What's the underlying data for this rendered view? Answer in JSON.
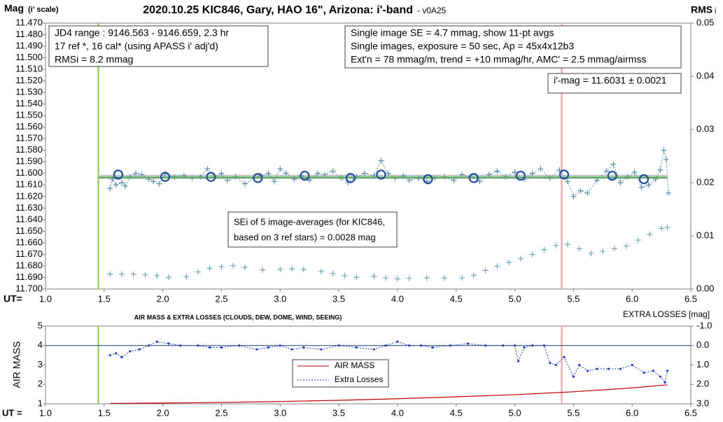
{
  "chart_data": [
    {
      "type": "scatter",
      "title": "2020.10.25 KIC846, Gary, HAO 16\", Arizona: i'-band",
      "subtitle": "- v0A25",
      "ylabel": "Mag",
      "ylabel_note": "(i' scale)",
      "y2label": "RMS",
      "y2label_note": "i",
      "xlabel": "UT=",
      "xlim": [
        1.0,
        6.5
      ],
      "xticks": [
        {
          "value": 1,
          "label": "1.0"
        },
        1.5,
        {
          "value": 2,
          "label": "2.0"
        },
        2.5,
        {
          "value": 3,
          "label": "3.0"
        },
        3.5,
        {
          "value": 4,
          "label": "4.0"
        },
        4.5,
        {
          "value": 5,
          "label": "5.0"
        },
        5.5,
        {
          "value": 6,
          "label": "6.0"
        },
        6.5
      ],
      "ylim": [
        11.7,
        11.47
      ],
      "yticks": [
        {
          "value": 11.47,
          "label": "11.470"
        },
        {
          "value": 11.48,
          "label": "11.480"
        },
        {
          "value": 11.49,
          "label": "11.490"
        },
        {
          "value": 11.5,
          "label": "11.500"
        },
        {
          "value": 11.51,
          "label": "11.510"
        },
        {
          "value": 11.52,
          "label": "11.520"
        },
        {
          "value": 11.53,
          "label": "11.530"
        },
        {
          "value": 11.54,
          "label": "11.540"
        },
        {
          "value": 11.55,
          "label": "11.550"
        },
        {
          "value": 11.56,
          "label": "11.560"
        },
        {
          "value": 11.57,
          "label": "11.570"
        },
        {
          "value": 11.58,
          "label": "11.580"
        },
        {
          "value": 11.59,
          "label": "11.590"
        },
        {
          "value": 11.6,
          "label": "11.600"
        },
        {
          "value": 11.61,
          "label": "11.610"
        },
        {
          "value": 11.62,
          "label": "11.620"
        },
        {
          "value": 11.63,
          "label": "11.630"
        },
        {
          "value": 11.64,
          "label": "11.640"
        },
        {
          "value": 11.65,
          "label": "11.650"
        },
        {
          "value": 11.66,
          "label": "11.660"
        },
        {
          "value": 11.67,
          "label": "11.670"
        },
        {
          "value": 11.68,
          "label": "11.680"
        },
        {
          "value": 11.69,
          "label": "11.690"
        },
        {
          "value": 11.7,
          "label": "11.700"
        }
      ],
      "y2lim": [
        0,
        0.05
      ],
      "y2ticks": [
        {
          "value": 0,
          "label": "0.00"
        },
        0.01,
        0.02,
        0.03,
        0.04,
        0.05
      ],
      "vlines": [
        {
          "x": 1.45,
          "color": "#8dc63f"
        },
        {
          "x": 5.4,
          "color": "#f4a0a0"
        }
      ],
      "series": [
        {
          "color": "#c8c8c8",
          "line": "solid",
          "width": 6,
          "x": [
            1.45,
            6.3
          ],
          "values": [
            11.603,
            11.603
          ]
        },
        {
          "color": "#5b8fb0",
          "marker": "plus",
          "line": "dotted",
          "x": [
            1.55,
            1.57,
            1.6,
            1.65,
            1.68,
            1.72,
            1.77,
            1.82,
            1.88,
            1.92,
            1.97,
            2.02,
            2.1,
            2.18,
            2.25,
            2.32,
            2.38,
            2.44,
            2.5,
            2.55,
            2.62,
            2.7,
            2.78,
            2.84,
            2.9,
            2.95,
            3.0,
            3.05,
            3.12,
            3.18,
            3.25,
            3.32,
            3.38,
            3.45,
            3.52,
            3.58,
            3.65,
            3.72,
            3.8,
            3.86,
            3.92,
            3.98,
            4.05,
            4.1,
            4.18,
            4.25,
            4.32,
            4.4,
            4.48,
            4.55,
            4.62,
            4.7,
            4.78,
            4.85,
            4.92,
            5.0,
            5.08,
            5.15,
            5.22,
            5.3,
            5.38,
            5.45,
            5.5,
            5.56,
            5.62,
            5.7,
            5.78,
            5.84,
            5.9,
            5.96,
            6.02,
            6.08,
            6.14,
            6.2,
            6.24,
            6.27,
            6.29,
            6.31
          ],
          "values": [
            11.613,
            11.605,
            11.61,
            11.608,
            11.611,
            11.603,
            11.6,
            11.601,
            11.605,
            11.607,
            11.609,
            11.6,
            11.603,
            11.602,
            11.604,
            11.603,
            11.596,
            11.603,
            11.6,
            11.606,
            11.603,
            11.609,
            11.604,
            11.602,
            11.6,
            11.607,
            11.596,
            11.6,
            11.605,
            11.602,
            11.606,
            11.6,
            11.601,
            11.598,
            11.604,
            11.608,
            11.603,
            11.6,
            11.602,
            11.589,
            11.6,
            11.604,
            11.602,
            11.606,
            11.604,
            11.607,
            11.604,
            11.603,
            11.606,
            11.601,
            11.603,
            11.607,
            11.601,
            11.598,
            11.603,
            11.599,
            11.605,
            11.6,
            11.596,
            11.604,
            11.597,
            11.607,
            11.62,
            11.615,
            11.617,
            11.606,
            11.598,
            11.592,
            11.608,
            11.603,
            11.599,
            11.612,
            11.61,
            11.605,
            11.597,
            11.58,
            11.588,
            11.617
          ]
        },
        {
          "color": "#4cb050",
          "line": "solid",
          "width": 2,
          "x": [
            1.45,
            6.3
          ],
          "values": [
            11.6035,
            11.6035
          ]
        },
        {
          "color": "#1f4e9e",
          "marker": "circle",
          "x": [
            1.62,
            2.02,
            2.41,
            2.81,
            3.21,
            3.6,
            3.86,
            4.26,
            4.65,
            5.05,
            5.42,
            5.83,
            6.1
          ],
          "values": [
            11.601,
            11.603,
            11.603,
            11.604,
            11.602,
            11.604,
            11.601,
            11.605,
            11.604,
            11.602,
            11.601,
            11.602,
            11.605
          ]
        },
        {
          "color": "#6fa8b8",
          "marker": "plus",
          "axis": "y2",
          "x": [
            1.55,
            1.65,
            1.75,
            1.85,
            1.95,
            2.05,
            2.2,
            2.3,
            2.4,
            2.5,
            2.6,
            2.7,
            2.85,
            3.0,
            3.1,
            3.2,
            3.35,
            3.45,
            3.55,
            3.65,
            3.8,
            3.9,
            4.0,
            4.1,
            4.25,
            4.4,
            4.55,
            4.65,
            4.75,
            4.85,
            4.95,
            5.05,
            5.15,
            5.25,
            5.35,
            5.45,
            5.55,
            5.65,
            5.75,
            5.85,
            5.95,
            6.05,
            6.15,
            6.25,
            6.3
          ],
          "values": [
            0.0028,
            0.0028,
            0.0028,
            0.0027,
            0.0025,
            0.0022,
            0.0023,
            0.0032,
            0.0039,
            0.0042,
            0.0044,
            0.0041,
            0.0036,
            0.0037,
            0.0038,
            0.0037,
            0.0033,
            0.0029,
            0.0025,
            0.0022,
            0.0024,
            0.0021,
            0.0019,
            0.002,
            0.0021,
            0.0021,
            0.0021,
            0.0026,
            0.0035,
            0.0043,
            0.005,
            0.0057,
            0.0065,
            0.0074,
            0.0082,
            0.0084,
            0.0076,
            0.0067,
            0.0071,
            0.0076,
            0.0081,
            0.0092,
            0.0103,
            0.0114,
            0.0116
          ]
        }
      ],
      "annotations": [
        {
          "lines": [
            "JD4 range : 9146.563 - 9146.659, 2.3  hr",
            "17 ref *, 16 cal* (using APASS i' adj'd)",
            "RMSi = 8.2 mmag"
          ]
        },
        {
          "lines": [
            "Single image SE = 4.7 mmag, show 11-pt avgs",
            "Single images, exposure = 50 sec, Ap = 45x4x12b3",
            "Ext'n = 78 mmag/m, trend = +10 mmag/hr, AMC' = 2.5 mmag/airmss"
          ]
        },
        {
          "lines": [
            "i'-mag = 11.6031 ± 0.0021"
          ]
        },
        {
          "lines": [
            "SEi of 5 image-averages (for KIC846,",
            "based on 3 ref stars) = 0.0028 mag"
          ]
        }
      ]
    },
    {
      "type": "line",
      "title": "AIR MASS & EXTRA LOSSES (CLOUDS, DEW, DOME, WIND, SEEING)",
      "ylabel": "AIR MASS",
      "y2label": "EXTRA LOSSES [mag]",
      "xlabel": "UT =",
      "xlim": [
        1.0,
        6.5
      ],
      "xticks": [
        {
          "value": 1,
          "label": "1.0"
        },
        1.5,
        {
          "value": 2,
          "label": "2.0"
        },
        2.5,
        {
          "value": 3,
          "label": "3.0"
        },
        3.5,
        {
          "value": 4,
          "label": "4.0"
        },
        4.5,
        {
          "value": 5,
          "label": "5.0"
        },
        5.5,
        {
          "value": 6,
          "label": "6.0"
        },
        6.5
      ],
      "ylim": [
        1,
        5
      ],
      "yticks": [
        1,
        2,
        3,
        4,
        5
      ],
      "y2lim": [
        3,
        -1
      ],
      "y2ticks": [
        {
          "value": -1,
          "label": "-1.0"
        },
        {
          "value": 0,
          "label": "0.0"
        },
        {
          "value": 1,
          "label": "1.0"
        },
        {
          "value": 2,
          "label": "2.0"
        },
        {
          "value": 3,
          "label": "3.0"
        }
      ],
      "vlines": [
        {
          "x": 1.45,
          "color": "#8dc63f"
        },
        {
          "x": 5.4,
          "color": "#f4a0a0"
        }
      ],
      "hlines": [
        {
          "value": 0,
          "axis": "y2",
          "color": "#1f3f7f"
        }
      ],
      "series": [
        {
          "name": "AIR MASS",
          "color": "#c00000",
          "line": "solid",
          "width": 1.2,
          "x": [
            1.55,
            2.0,
            2.5,
            3.0,
            3.5,
            4.0,
            4.5,
            5.0,
            5.5,
            6.0,
            6.3
          ],
          "values": [
            1.02,
            1.04,
            1.07,
            1.12,
            1.18,
            1.26,
            1.36,
            1.47,
            1.62,
            1.82,
            1.98
          ]
        },
        {
          "name": "Extra Losses",
          "color": "#1f3fbf",
          "line": "dotted",
          "marker": "dot",
          "axis": "y2",
          "width": 1,
          "x": [
            1.55,
            1.6,
            1.65,
            1.72,
            1.8,
            1.88,
            1.95,
            2.05,
            2.15,
            2.3,
            2.4,
            2.5,
            2.65,
            2.8,
            2.9,
            3.0,
            3.1,
            3.2,
            3.35,
            3.5,
            3.65,
            3.8,
            3.9,
            4.0,
            4.1,
            4.2,
            4.3,
            4.45,
            4.6,
            4.75,
            4.9,
            5.0,
            5.03,
            5.08,
            5.15,
            5.25,
            5.3,
            5.35,
            5.42,
            5.5,
            5.55,
            5.62,
            5.7,
            5.8,
            5.9,
            6.0,
            6.1,
            6.18,
            6.24,
            6.28,
            6.3
          ],
          "values": [
            0.5,
            0.4,
            0.6,
            0.3,
            0.2,
            0.0,
            -0.2,
            -0.1,
            0.0,
            0.0,
            0.1,
            0.1,
            0.0,
            0.2,
            0.1,
            0.0,
            0.2,
            0.1,
            0.2,
            0.0,
            0.1,
            0.2,
            0.0,
            -0.2,
            0.0,
            0.0,
            0.1,
            0.0,
            -0.1,
            0.0,
            0.0,
            0.0,
            0.8,
            0.1,
            0.0,
            0.0,
            0.9,
            1.0,
            0.6,
            1.6,
            1.0,
            1.3,
            1.2,
            1.2,
            1.2,
            1.0,
            1.4,
            1.3,
            1.6,
            1.9,
            1.3
          ]
        }
      ]
    }
  ]
}
